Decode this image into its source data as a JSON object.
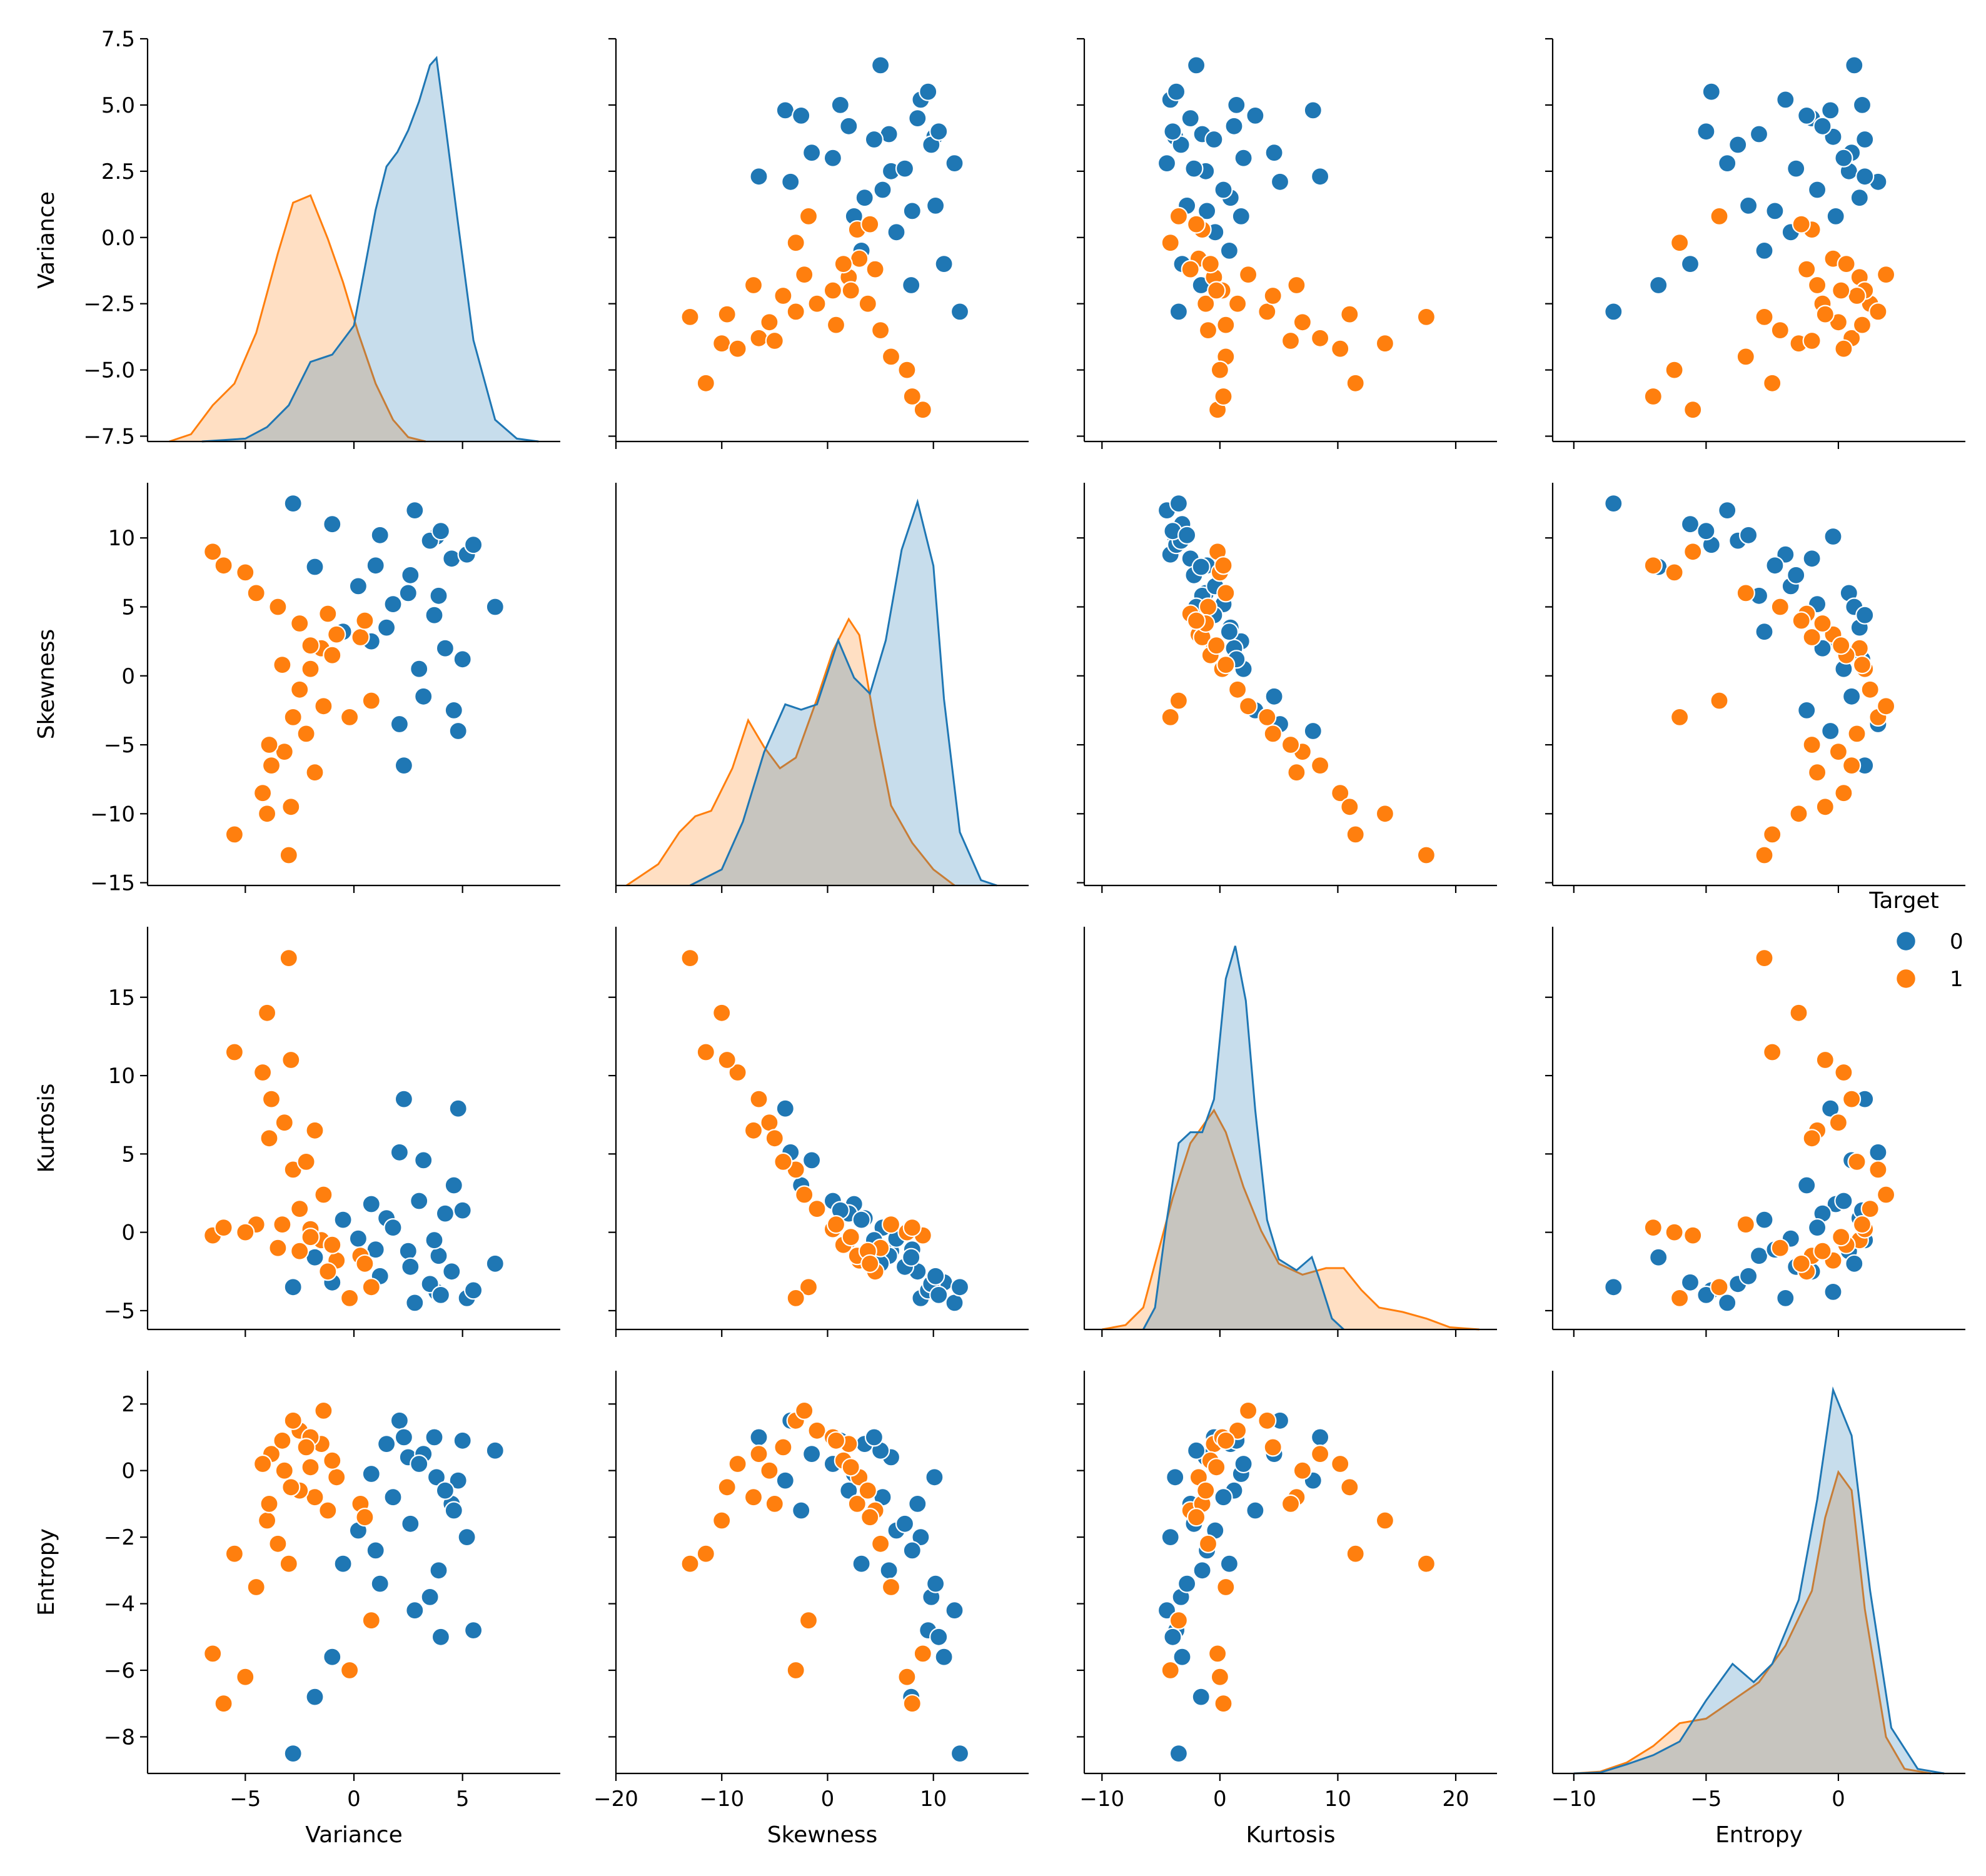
{
  "chart_data": {
    "type": "scatter",
    "variables": [
      "Variance",
      "Skewness",
      "Kurtosis",
      "Entropy"
    ],
    "axes": {
      "Variance": {
        "range": [
          -7.7,
          7.5
        ],
        "ticks": [
          -7.5,
          -5.0,
          -2.5,
          0.0,
          2.5,
          5.0,
          7.5
        ],
        "tick_labels": [
          "−7.5",
          "−5.0",
          "−2.5",
          "0.0",
          "2.5",
          "5.0",
          "7.5"
        ],
        "x_range": [
          -9.5,
          9.5
        ],
        "x_ticks": [
          -5,
          0,
          5
        ],
        "x_tick_labels": [
          "−5",
          "0",
          "5"
        ]
      },
      "Skewness": {
        "range": [
          -15.2,
          14.0
        ],
        "ticks": [
          -15,
          -10,
          -5,
          0,
          5,
          10
        ],
        "tick_labels": [
          "−15",
          "−10",
          "−5",
          "0",
          "5",
          "10"
        ],
        "x_range": [
          -20,
          19
        ],
        "x_ticks": [
          -20,
          -10,
          0,
          10
        ],
        "x_tick_labels": [
          "−20",
          "−10",
          "0",
          "10"
        ]
      },
      "Kurtosis": {
        "range": [
          -6.2,
          19.5
        ],
        "ticks": [
          -5,
          0,
          5,
          10,
          15
        ],
        "tick_labels": [
          "−5",
          "0",
          "5",
          "10",
          "15"
        ],
        "x_range": [
          -11.5,
          23.5
        ],
        "x_ticks": [
          -10,
          0,
          10,
          20
        ],
        "x_tick_labels": [
          "−10",
          "0",
          "10",
          "20"
        ]
      },
      "Entropy": {
        "range": [
          -9.1,
          3.0
        ],
        "ticks": [
          -8,
          -6,
          -4,
          -2,
          0,
          2
        ],
        "tick_labels": [
          "−8",
          "−6",
          "−4",
          "−2",
          "0",
          "2"
        ],
        "x_range": [
          -10.8,
          4.8
        ],
        "x_ticks": [
          -10,
          -5,
          0
        ],
        "x_tick_labels": [
          "−10",
          "−5",
          "0"
        ]
      }
    },
    "legend": {
      "title": "Target",
      "position": "right",
      "entries": [
        {
          "label": "0",
          "color": "#1f77b4"
        },
        {
          "label": "1",
          "color": "#ff7f0e"
        }
      ]
    },
    "series": [
      {
        "name": "0",
        "color": "#1f77b4",
        "points": [
          [
            4.5,
            8.5,
            -2.5,
            -1.0
          ],
          [
            3.8,
            10.1,
            -3.8,
            -0.2
          ],
          [
            2.5,
            6.0,
            -1.2,
            0.4
          ],
          [
            5.2,
            8.8,
            -4.2,
            -2.0
          ],
          [
            1.5,
            3.5,
            0.9,
            0.8
          ],
          [
            3.2,
            -1.5,
            4.6,
            0.5
          ],
          [
            4.8,
            -4.0,
            7.9,
            -0.3
          ],
          [
            2.1,
            -3.5,
            5.1,
            1.5
          ],
          [
            0.8,
            2.5,
            1.8,
            -0.1
          ],
          [
            3.9,
            5.8,
            -1.5,
            -3.0
          ],
          [
            2.8,
            12.0,
            -4.5,
            -4.2
          ],
          [
            -1.0,
            11.0,
            -3.2,
            -5.6
          ],
          [
            1.0,
            8.0,
            -1.1,
            -2.4
          ],
          [
            4.2,
            2.0,
            1.2,
            -0.6
          ],
          [
            5.5,
            9.5,
            -3.7,
            -4.8
          ],
          [
            0.2,
            6.5,
            -0.4,
            -1.8
          ],
          [
            -2.8,
            12.5,
            -3.5,
            -8.5
          ],
          [
            2.3,
            -6.5,
            8.5,
            1.0
          ],
          [
            3.5,
            9.8,
            -3.3,
            -3.8
          ],
          [
            4.0,
            10.5,
            -4.0,
            -5.0
          ],
          [
            1.8,
            5.2,
            0.3,
            -0.8
          ],
          [
            6.5,
            5.0,
            -2.0,
            0.6
          ],
          [
            -0.5,
            3.2,
            0.8,
            -2.8
          ],
          [
            3.0,
            0.5,
            2.0,
            0.2
          ],
          [
            4.6,
            -2.5,
            3.0,
            -1.2
          ],
          [
            2.6,
            7.3,
            -2.2,
            -1.6
          ],
          [
            1.2,
            10.2,
            -2.8,
            -3.4
          ],
          [
            3.7,
            4.4,
            -0.5,
            1.0
          ],
          [
            -1.8,
            7.9,
            -1.6,
            -6.8
          ],
          [
            5.0,
            1.2,
            1.4,
            0.9
          ]
        ]
      },
      {
        "name": "1",
        "color": "#ff7f0e",
        "points": [
          [
            -1.5,
            2.0,
            -0.5,
            0.8
          ],
          [
            -2.5,
            -1.0,
            1.5,
            1.2
          ],
          [
            -3.2,
            -5.5,
            7.0,
            0.0
          ],
          [
            -0.8,
            3.0,
            -1.8,
            -0.2
          ],
          [
            -4.0,
            -10.0,
            14.0,
            -1.5
          ],
          [
            -2.0,
            0.5,
            0.2,
            1.0
          ],
          [
            -5.5,
            -11.5,
            11.5,
            -2.5
          ],
          [
            -1.2,
            4.5,
            -2.5,
            -1.2
          ],
          [
            -3.8,
            -6.5,
            8.5,
            0.5
          ],
          [
            0.3,
            2.8,
            -1.5,
            -1.0
          ],
          [
            -2.8,
            -3.0,
            4.0,
            1.5
          ],
          [
            -6.5,
            9.0,
            -0.2,
            -5.5
          ],
          [
            -4.5,
            6.0,
            0.5,
            -3.5
          ],
          [
            -3.0,
            -13.0,
            17.5,
            -2.8
          ],
          [
            -1.0,
            1.5,
            -0.8,
            0.3
          ],
          [
            -2.2,
            -4.2,
            4.5,
            0.7
          ],
          [
            -5.0,
            7.5,
            0.0,
            -6.2
          ],
          [
            -3.5,
            5.0,
            -1.0,
            -2.2
          ],
          [
            0.8,
            -1.8,
            -3.5,
            -4.5
          ],
          [
            -0.2,
            -3.0,
            -4.2,
            -6.0
          ],
          [
            -1.8,
            -7.0,
            6.5,
            -0.8
          ],
          [
            -4.2,
            -8.5,
            10.2,
            0.2
          ],
          [
            -2.5,
            3.8,
            -1.2,
            -0.6
          ],
          [
            -3.3,
            0.8,
            0.5,
            0.9
          ],
          [
            -6.0,
            8.0,
            0.3,
            -7.0
          ],
          [
            -1.4,
            -2.2,
            2.4,
            1.8
          ],
          [
            -2.9,
            -9.5,
            11.0,
            -0.5
          ],
          [
            0.5,
            4.0,
            -2.0,
            -1.4
          ],
          [
            -3.9,
            -5.0,
            6.0,
            -1.0
          ],
          [
            -2.0,
            2.2,
            -0.3,
            0.1
          ]
        ]
      }
    ],
    "kde": {
      "Variance": {
        "0": [
          [
            -7.0,
            0.0
          ],
          [
            -5.0,
            0.002
          ],
          [
            -4.0,
            0.01
          ],
          [
            -3.0,
            0.025
          ],
          [
            -2.0,
            0.055
          ],
          [
            -1.0,
            0.06
          ],
          [
            0.0,
            0.08
          ],
          [
            0.5,
            0.12
          ],
          [
            1.0,
            0.16
          ],
          [
            1.5,
            0.19
          ],
          [
            2.0,
            0.2
          ],
          [
            2.5,
            0.215
          ],
          [
            3.0,
            0.235
          ],
          [
            3.5,
            0.26
          ],
          [
            3.8,
            0.265
          ],
          [
            4.2,
            0.22
          ],
          [
            4.8,
            0.15
          ],
          [
            5.5,
            0.07
          ],
          [
            6.5,
            0.015
          ],
          [
            7.5,
            0.002
          ],
          [
            8.5,
            0.0
          ]
        ],
        "1": [
          [
            -8.5,
            0.0
          ],
          [
            -7.5,
            0.005
          ],
          [
            -6.5,
            0.025
          ],
          [
            -5.5,
            0.04
          ],
          [
            -4.5,
            0.075
          ],
          [
            -3.5,
            0.13
          ],
          [
            -2.8,
            0.165
          ],
          [
            -2.0,
            0.17
          ],
          [
            -1.2,
            0.14
          ],
          [
            -0.5,
            0.11
          ],
          [
            0.2,
            0.075
          ],
          [
            1.0,
            0.04
          ],
          [
            1.8,
            0.015
          ],
          [
            2.5,
            0.003
          ],
          [
            3.3,
            0.0
          ]
        ]
      },
      "Skewness": {
        "0": [
          [
            -13.0,
            0.0
          ],
          [
            -10.0,
            0.003
          ],
          [
            -8.0,
            0.012
          ],
          [
            -6.0,
            0.025
          ],
          [
            -4.0,
            0.034
          ],
          [
            -2.5,
            0.033
          ],
          [
            -1.0,
            0.034
          ],
          [
            1.0,
            0.046
          ],
          [
            2.5,
            0.039
          ],
          [
            4.0,
            0.036
          ],
          [
            5.5,
            0.046
          ],
          [
            7.0,
            0.063
          ],
          [
            8.5,
            0.072
          ],
          [
            10.0,
            0.06
          ],
          [
            11.0,
            0.035
          ],
          [
            12.5,
            0.01
          ],
          [
            14.5,
            0.001
          ],
          [
            16.0,
            0.0
          ]
        ],
        "1": [
          [
            -19.0,
            0.0
          ],
          [
            -16.0,
            0.004
          ],
          [
            -14.0,
            0.01
          ],
          [
            -12.5,
            0.013
          ],
          [
            -11.0,
            0.014
          ],
          [
            -9.0,
            0.022
          ],
          [
            -7.5,
            0.031
          ],
          [
            -6.0,
            0.026
          ],
          [
            -4.5,
            0.022
          ],
          [
            -3.0,
            0.024
          ],
          [
            -1.0,
            0.035
          ],
          [
            0.5,
            0.044
          ],
          [
            2.0,
            0.05
          ],
          [
            3.0,
            0.047
          ],
          [
            4.5,
            0.03
          ],
          [
            6.0,
            0.015
          ],
          [
            8.0,
            0.008
          ],
          [
            10.0,
            0.003
          ],
          [
            12.0,
            0.0
          ]
        ]
      },
      "Kurtosis": {
        "0": [
          [
            -6.5,
            0.0
          ],
          [
            -5.5,
            0.01
          ],
          [
            -4.5,
            0.05
          ],
          [
            -3.5,
            0.085
          ],
          [
            -2.5,
            0.09
          ],
          [
            -1.5,
            0.09
          ],
          [
            -0.5,
            0.105
          ],
          [
            0.5,
            0.16
          ],
          [
            1.3,
            0.175
          ],
          [
            2.2,
            0.15
          ],
          [
            3.0,
            0.1
          ],
          [
            4.0,
            0.05
          ],
          [
            5.0,
            0.032
          ],
          [
            6.5,
            0.027
          ],
          [
            7.8,
            0.033
          ],
          [
            8.5,
            0.022
          ],
          [
            9.5,
            0.005
          ],
          [
            10.5,
            0.0
          ]
        ],
        "1": [
          [
            -10.0,
            0.0
          ],
          [
            -8.0,
            0.002
          ],
          [
            -6.5,
            0.01
          ],
          [
            -5.5,
            0.03
          ],
          [
            -4.0,
            0.06
          ],
          [
            -2.5,
            0.085
          ],
          [
            -0.5,
            0.1
          ],
          [
            0.5,
            0.09
          ],
          [
            2.0,
            0.065
          ],
          [
            3.5,
            0.045
          ],
          [
            5.0,
            0.03
          ],
          [
            7.0,
            0.025
          ],
          [
            9.0,
            0.028
          ],
          [
            10.5,
            0.028
          ],
          [
            12.0,
            0.018
          ],
          [
            13.5,
            0.01
          ],
          [
            15.5,
            0.008
          ],
          [
            17.5,
            0.005
          ],
          [
            19.5,
            0.001
          ],
          [
            22.0,
            0.0
          ]
        ]
      },
      "Entropy": {
        "0": [
          [
            -10.0,
            0.0
          ],
          [
            -9.0,
            0.001
          ],
          [
            -8.0,
            0.01
          ],
          [
            -7.0,
            0.02
          ],
          [
            -6.0,
            0.035
          ],
          [
            -5.0,
            0.08
          ],
          [
            -4.0,
            0.12
          ],
          [
            -3.2,
            0.1
          ],
          [
            -2.5,
            0.12
          ],
          [
            -1.5,
            0.19
          ],
          [
            -0.8,
            0.3
          ],
          [
            -0.2,
            0.42
          ],
          [
            0.5,
            0.37
          ],
          [
            1.2,
            0.2
          ],
          [
            2.0,
            0.05
          ],
          [
            3.0,
            0.005
          ],
          [
            4.0,
            0.0
          ]
        ],
        "1": [
          [
            -10.0,
            0.0
          ],
          [
            -9.0,
            0.002
          ],
          [
            -8.0,
            0.012
          ],
          [
            -7.0,
            0.03
          ],
          [
            -6.0,
            0.055
          ],
          [
            -5.0,
            0.06
          ],
          [
            -4.0,
            0.08
          ],
          [
            -3.0,
            0.1
          ],
          [
            -2.0,
            0.14
          ],
          [
            -1.0,
            0.2
          ],
          [
            -0.5,
            0.28
          ],
          [
            0.0,
            0.33
          ],
          [
            0.5,
            0.31
          ],
          [
            1.0,
            0.18
          ],
          [
            1.8,
            0.04
          ],
          [
            2.5,
            0.005
          ],
          [
            3.5,
            0.0
          ]
        ]
      }
    }
  }
}
